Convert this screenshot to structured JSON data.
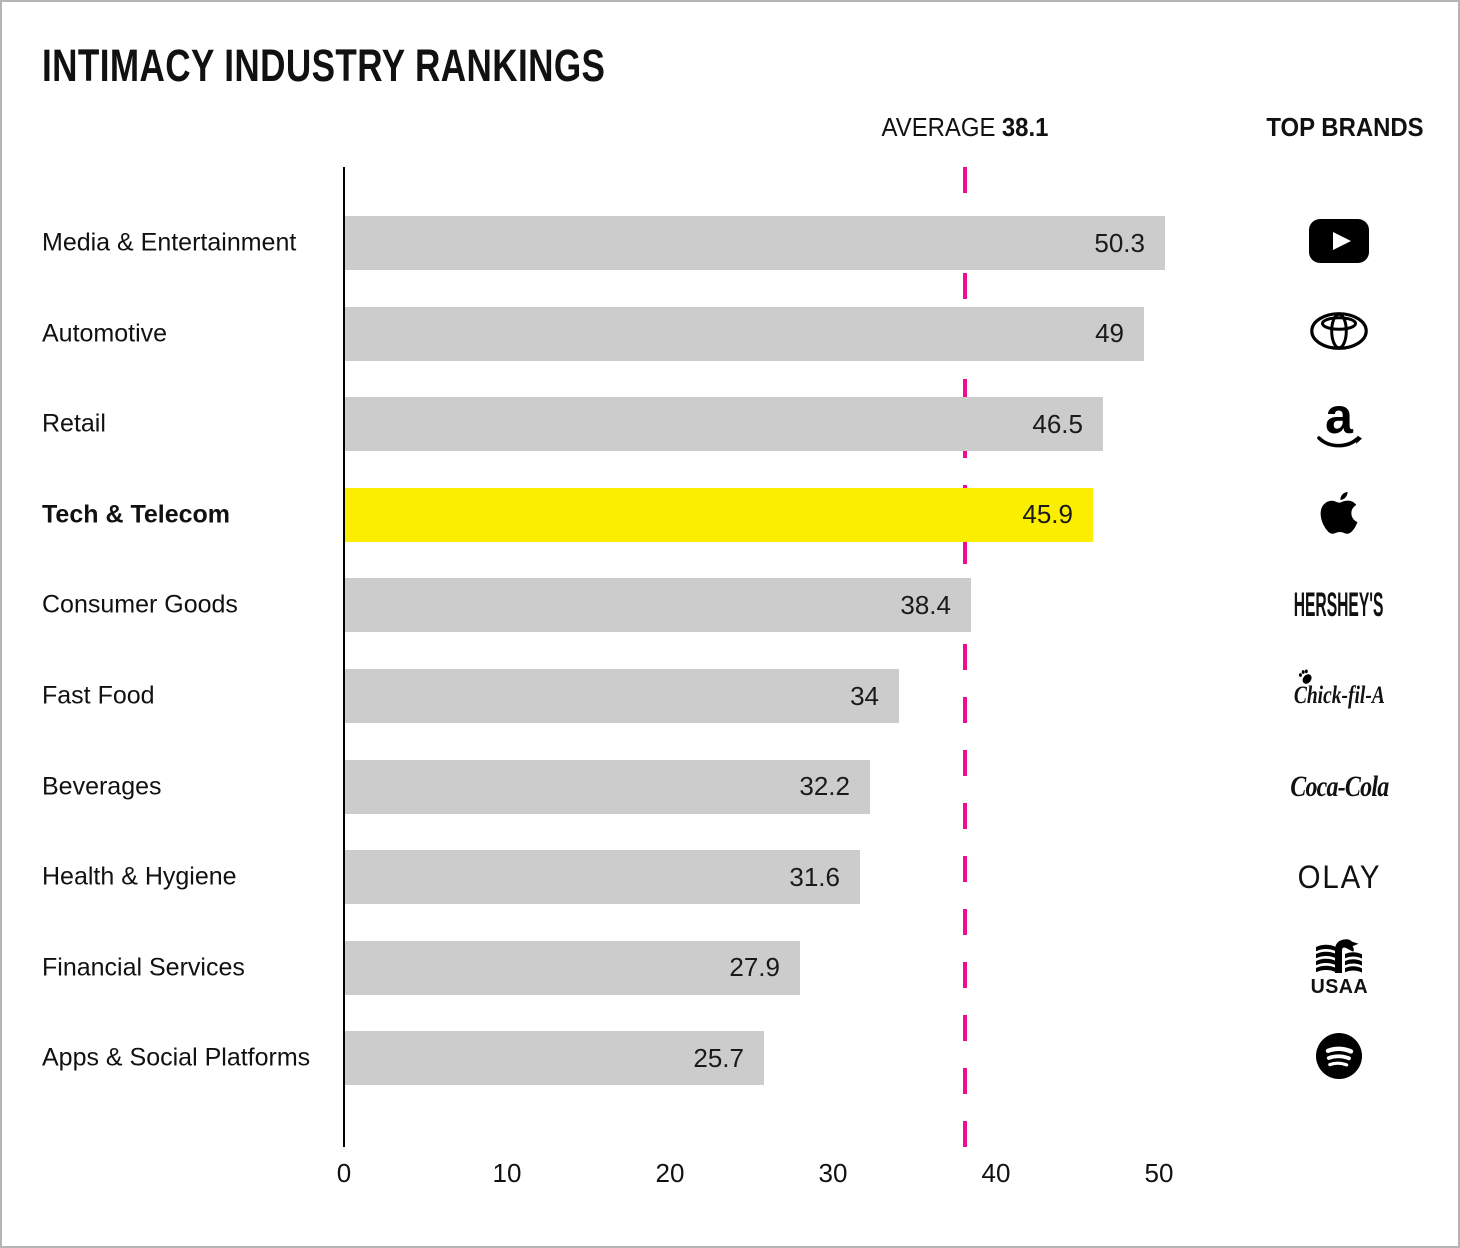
{
  "title": "INTIMACY INDUSTRY RANKINGS",
  "labels": {
    "average_prefix": "AVERAGE",
    "average_value": "38.1",
    "top_brands": "TOP BRANDS"
  },
  "colors": {
    "bar": "#cccccc",
    "highlight_bar": "#fbee00",
    "average_line": "#f00d90",
    "text": "#111111",
    "axis": "#000000"
  },
  "chart_data": {
    "type": "bar",
    "orientation": "horizontal",
    "title": "INTIMACY INDUSTRY RANKINGS",
    "categories": [
      "Media & Entertainment",
      "Automotive",
      "Retail",
      "Tech & Telecom",
      "Consumer Goods",
      "Fast Food",
      "Beverages",
      "Health & Hygiene",
      "Financial Services",
      "Apps & Social Platforms"
    ],
    "values": [
      50.3,
      49,
      46.5,
      45.9,
      38.4,
      34,
      32.2,
      31.6,
      27.9,
      25.7
    ],
    "value_labels": [
      "50.3",
      "49",
      "46.5",
      "45.9",
      "38.4",
      "34",
      "32.2",
      "31.6",
      "27.9",
      "25.7"
    ],
    "highlighted_category": "Tech & Telecom",
    "average": 38.1,
    "average_annotation": "AVERAGE 38.1",
    "x_ticks": [
      0,
      10,
      20,
      30,
      40,
      50
    ],
    "tick_labels": [
      "0",
      "10",
      "20",
      "30",
      "40",
      "50"
    ],
    "xlim": [
      0,
      50
    ],
    "grid": false,
    "legend_position": "none",
    "top_brands_column_header": "TOP BRANDS",
    "top_brands": [
      "YouTube",
      "Toyota",
      "Amazon",
      "Apple",
      "Hershey's",
      "Chick-fil-A",
      "Coca-Cola",
      "Olay",
      "USAA",
      "Spotify"
    ],
    "brand_wordmarks": {
      "hersheys": "HERSHEY'S",
      "chickfila": "Chick-fil-A",
      "cocacola": "Coca-Cola",
      "olay": "OLAY",
      "usaa": "USAA",
      "amazon_a": "a"
    }
  }
}
